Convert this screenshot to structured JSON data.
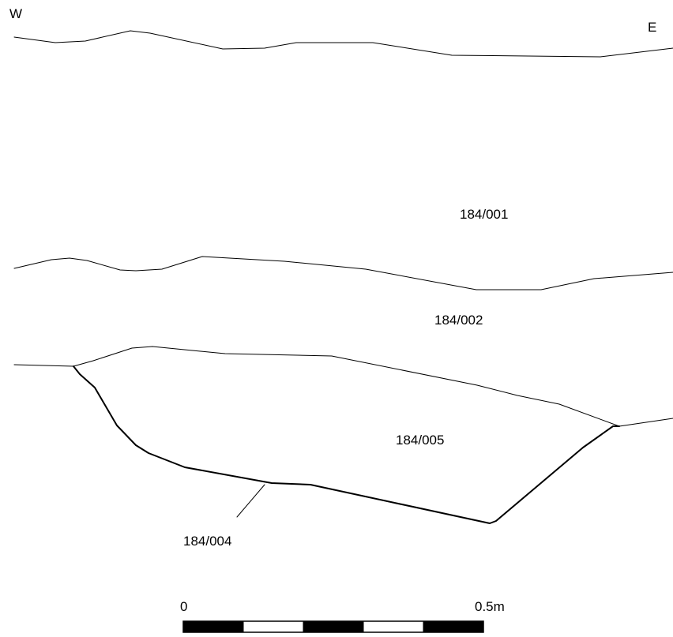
{
  "orientation": {
    "west": "W",
    "east": "E"
  },
  "contexts": {
    "c001": "184/001",
    "c002": "184/002",
    "c005": "184/005",
    "c004": "184/004"
  },
  "scale_bar": {
    "start_label": "0",
    "end_label": "0.5m",
    "segment_count": 5,
    "colors": {
      "dark": "#000000",
      "light": "#ffffff"
    }
  }
}
